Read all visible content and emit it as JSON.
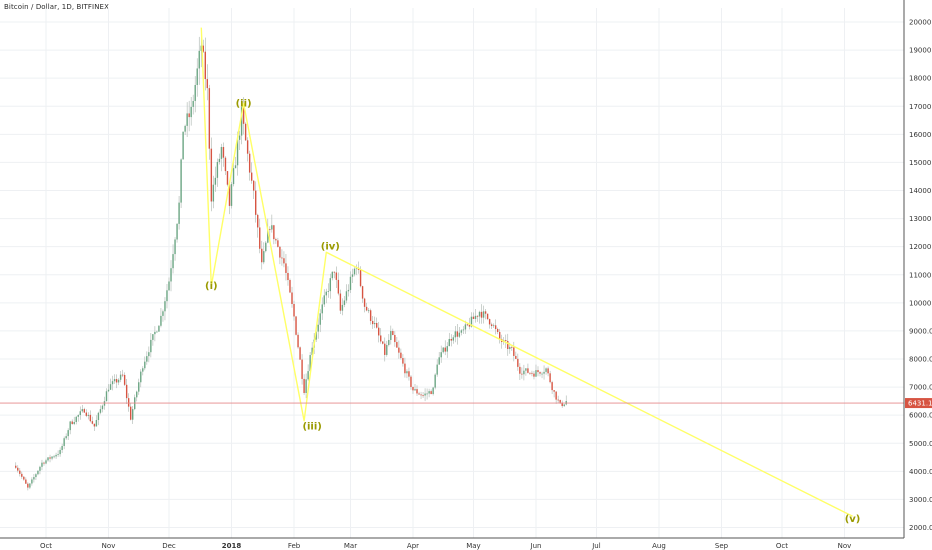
{
  "chart_data": {
    "type": "candlestick",
    "title": "Bitcoin / Dollar, 1D, BITFINEX",
    "ylim": [
      1500,
      20500
    ],
    "y_ticks": [
      "2000.0",
      "3000.0",
      "4000.0",
      "5000.0",
      "6000.0",
      "7000.0",
      "8000.0",
      "9000.0",
      "10000.0",
      "11000.0",
      "12000.0",
      "13000.0",
      "14000.0",
      "15000.0",
      "16000.0",
      "17000.0",
      "18000.0",
      "19000.0",
      "20000.0"
    ],
    "x_ticks": [
      "Oct",
      "Nov",
      "Dec",
      "2018",
      "Feb",
      "Mar",
      "Apr",
      "May",
      "Jun",
      "Jul",
      "Aug",
      "Sep",
      "Oct",
      "Nov"
    ],
    "last_price": "6431.1",
    "price_path": [
      {
        "date": "2017-09-16",
        "price": 4200
      },
      {
        "date": "2017-09-22",
        "price": 3400
      },
      {
        "date": "2017-09-29",
        "price": 4300
      },
      {
        "date": "2017-10-08",
        "price": 4700
      },
      {
        "date": "2017-10-13",
        "price": 5700
      },
      {
        "date": "2017-10-20",
        "price": 6200
      },
      {
        "date": "2017-10-25",
        "price": 5600
      },
      {
        "date": "2017-11-01",
        "price": 7000
      },
      {
        "date": "2017-11-08",
        "price": 7400
      },
      {
        "date": "2017-11-12",
        "price": 5900
      },
      {
        "date": "2017-11-18",
        "price": 7800
      },
      {
        "date": "2017-11-27",
        "price": 9500
      },
      {
        "date": "2017-12-01",
        "price": 10800
      },
      {
        "date": "2017-12-06",
        "price": 13500
      },
      {
        "date": "2017-12-08",
        "price": 16200
      },
      {
        "date": "2017-12-12",
        "price": 16800
      },
      {
        "date": "2017-12-17",
        "price": 19200
      },
      {
        "date": "2017-12-20",
        "price": 17500
      },
      {
        "date": "2017-12-22",
        "price": 13800
      },
      {
        "date": "2017-12-27",
        "price": 15500
      },
      {
        "date": "2017-12-31",
        "price": 13500
      },
      {
        "date": "2018-01-06",
        "price": 16700
      },
      {
        "date": "2018-01-12",
        "price": 13800
      },
      {
        "date": "2018-01-16",
        "price": 11300
      },
      {
        "date": "2018-01-20",
        "price": 12800
      },
      {
        "date": "2018-01-27",
        "price": 11400
      },
      {
        "date": "2018-02-01",
        "price": 9500
      },
      {
        "date": "2018-02-06",
        "price": 6900
      },
      {
        "date": "2018-02-10",
        "price": 8500
      },
      {
        "date": "2018-02-16",
        "price": 10100
      },
      {
        "date": "2018-02-21",
        "price": 11200
      },
      {
        "date": "2018-02-24",
        "price": 9700
      },
      {
        "date": "2018-03-04",
        "price": 11400
      },
      {
        "date": "2018-03-08",
        "price": 9900
      },
      {
        "date": "2018-03-13",
        "price": 9200
      },
      {
        "date": "2018-03-18",
        "price": 8200
      },
      {
        "date": "2018-03-21",
        "price": 8900
      },
      {
        "date": "2018-03-27",
        "price": 7800
      },
      {
        "date": "2018-04-01",
        "price": 6900
      },
      {
        "date": "2018-04-06",
        "price": 6700
      },
      {
        "date": "2018-04-11",
        "price": 6900
      },
      {
        "date": "2018-04-13",
        "price": 7900
      },
      {
        "date": "2018-04-21",
        "price": 8900
      },
      {
        "date": "2018-04-25",
        "price": 8900
      },
      {
        "date": "2018-05-04",
        "price": 9700
      },
      {
        "date": "2018-05-10",
        "price": 9300
      },
      {
        "date": "2018-05-14",
        "price": 8700
      },
      {
        "date": "2018-05-20",
        "price": 8300
      },
      {
        "date": "2018-05-24",
        "price": 7600
      },
      {
        "date": "2018-05-31",
        "price": 7500
      },
      {
        "date": "2018-06-06",
        "price": 7650
      },
      {
        "date": "2018-06-10",
        "price": 6800
      },
      {
        "date": "2018-06-13",
        "price": 6350
      },
      {
        "date": "2018-06-16",
        "price": 6500
      }
    ],
    "wave_labels": [
      {
        "label": "(i)",
        "date": "2017-12-22",
        "price": 10600
      },
      {
        "label": "(ii)",
        "date": "2018-01-07",
        "price": 17100
      },
      {
        "label": "(iii)",
        "date": "2018-02-10",
        "price": 5600
      },
      {
        "label": "(iv)",
        "date": "2018-02-19",
        "price": 12000
      },
      {
        "label": "(v)",
        "date": "2018-11-05",
        "price": 2300
      }
    ],
    "wave_lines": [
      {
        "date": "2017-12-17",
        "price": 19800
      },
      {
        "date": "2017-12-22",
        "price": 10600
      },
      {
        "date": "2018-01-07",
        "price": 17100
      },
      {
        "date": "2018-02-06",
        "price": 5800
      },
      {
        "date": "2018-02-17",
        "price": 11800
      },
      {
        "date": "2018-11-05",
        "price": 2400
      }
    ],
    "colors": {
      "up": "#6ba583",
      "down": "#d75442",
      "wave": "#ffff66",
      "wave_text": "#9a9a00",
      "price_line": "#e5888a",
      "price_tag": "#d75442"
    }
  }
}
